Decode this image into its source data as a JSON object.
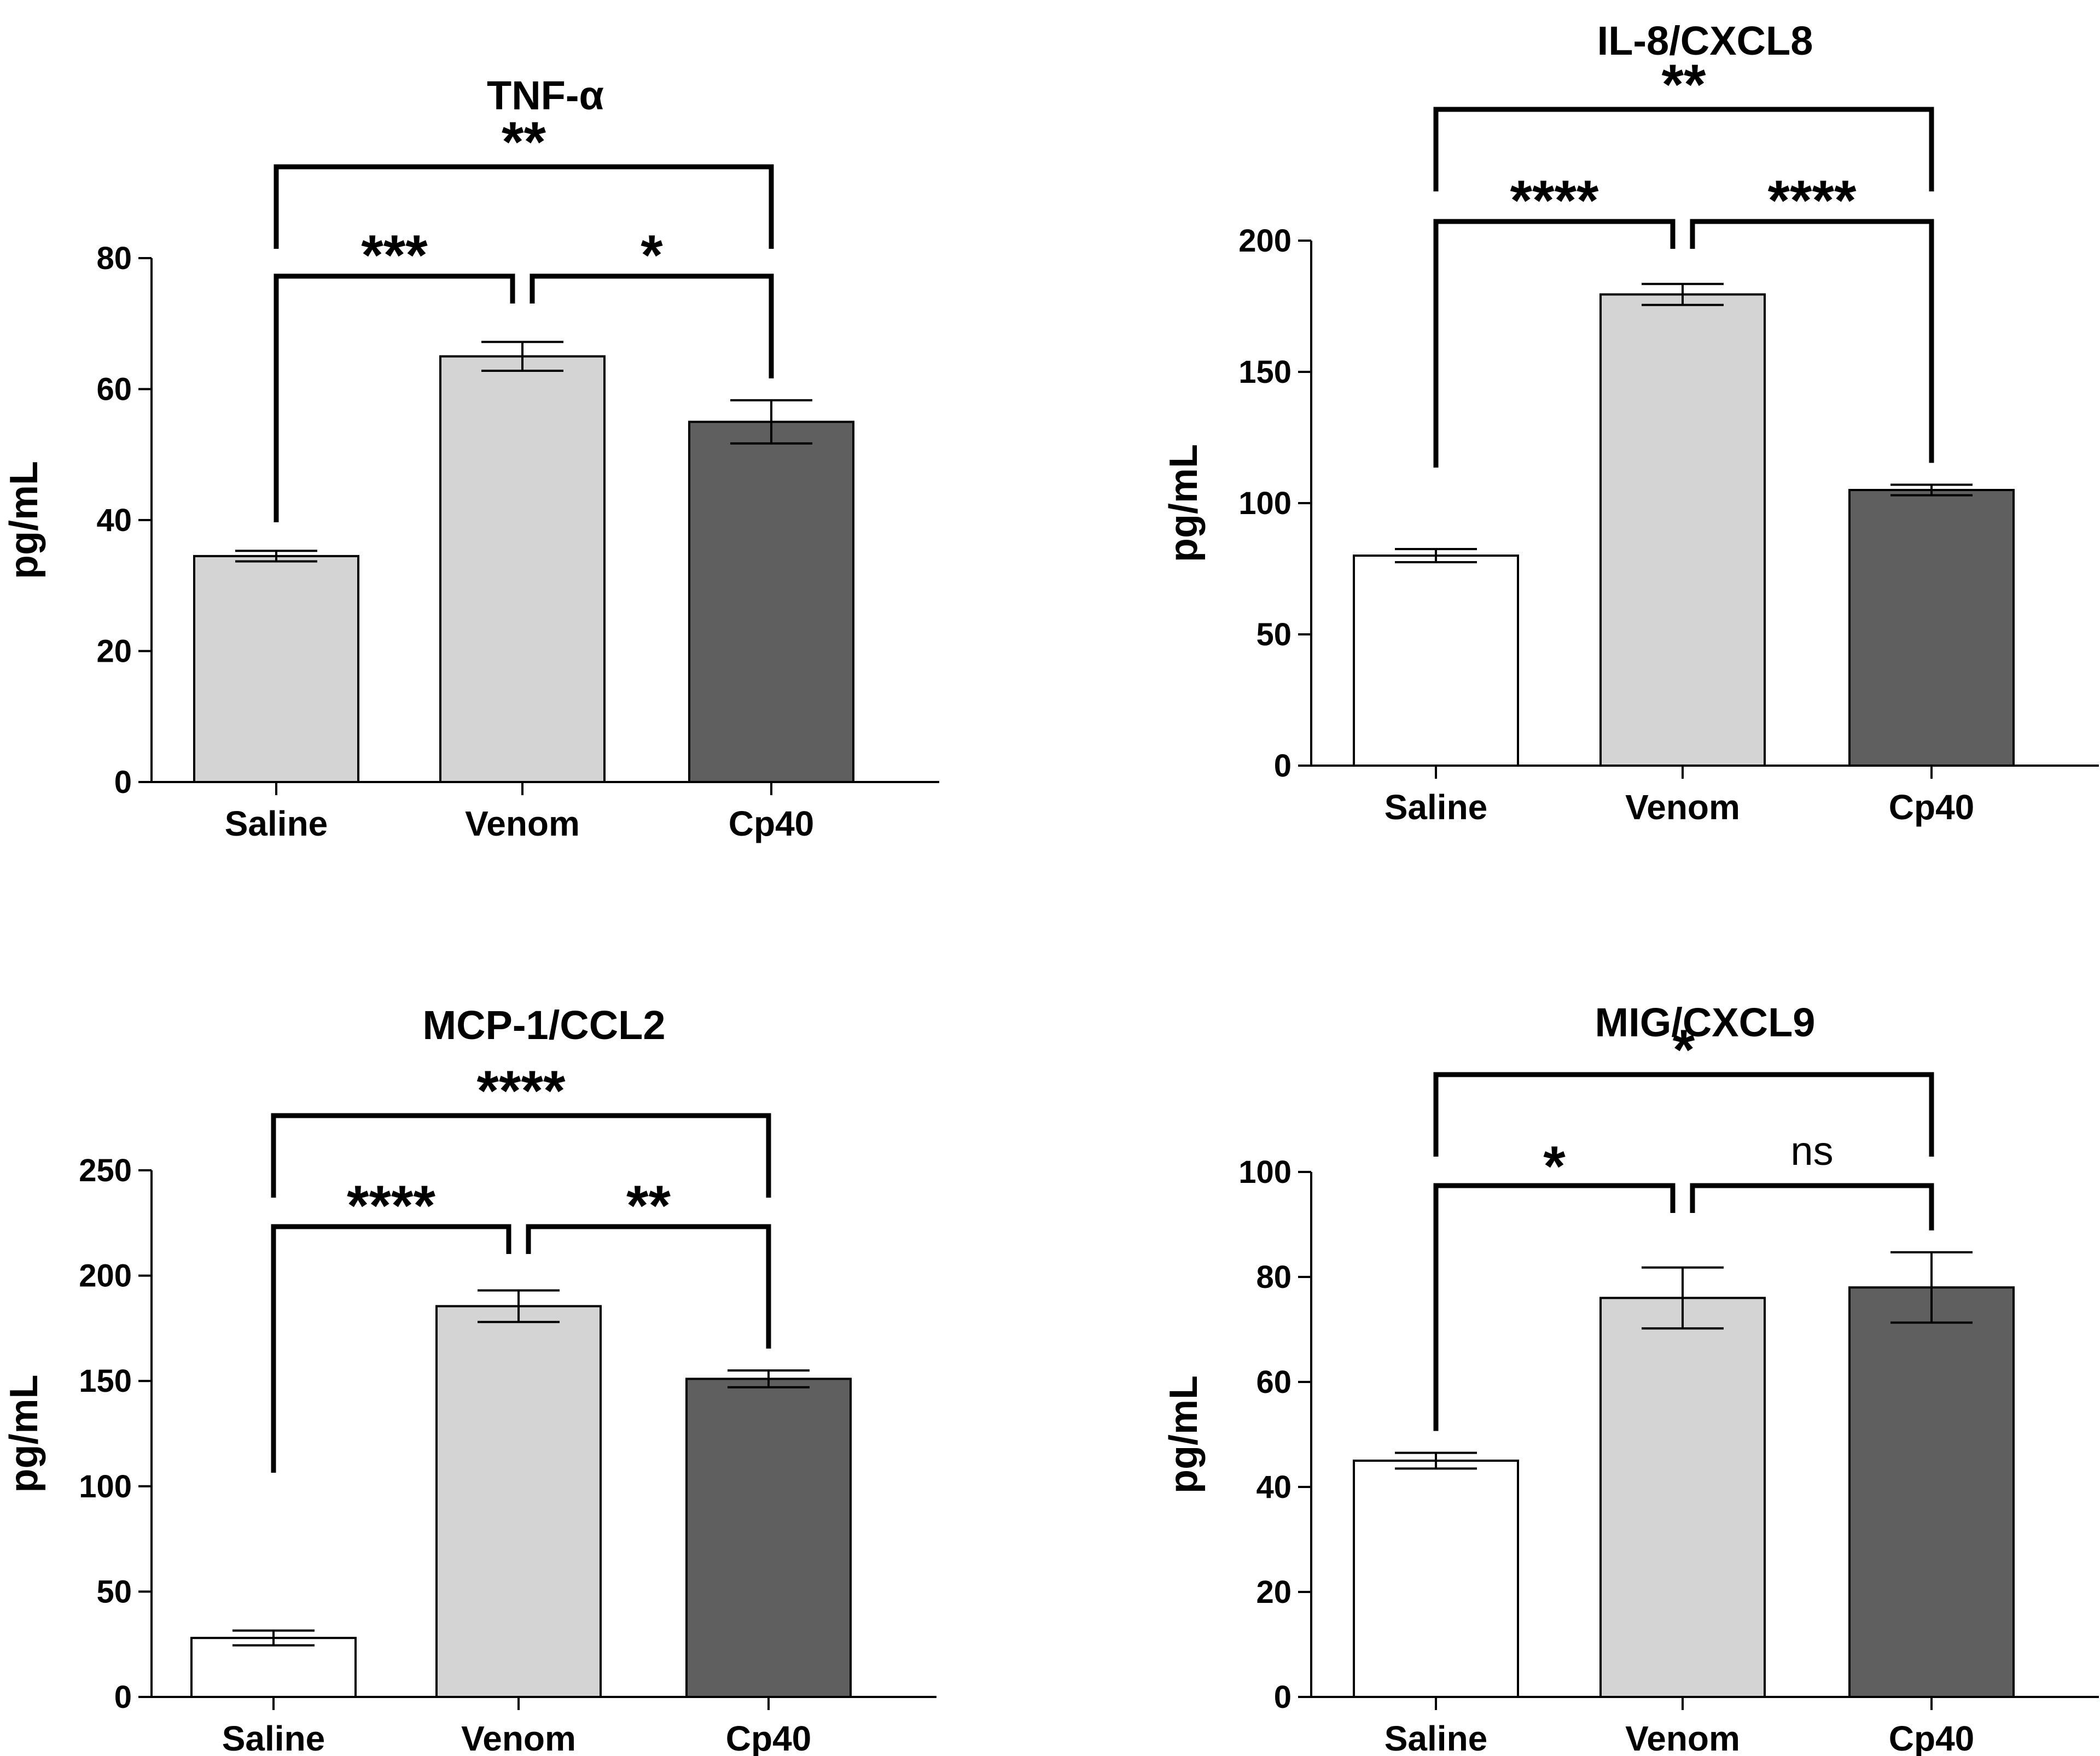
{
  "chart_data": [
    {
      "type": "bar",
      "title": "TNF-α",
      "xlabel": "",
      "ylabel": "pg/mL",
      "categories": [
        "Saline",
        "Venom",
        "Cp40"
      ],
      "values": [
        34.5,
        65,
        55
      ],
      "errors": [
        0.8,
        2.2,
        3.3
      ],
      "bar_colors": [
        "#d4d4d4",
        "#d4d4d4",
        "#5f5f5f"
      ],
      "ylim": [
        0,
        80
      ],
      "yticks": [
        0,
        20,
        40,
        60,
        80
      ],
      "comparisons": [
        {
          "from": "Saline",
          "to": "Venom",
          "label": "***"
        },
        {
          "from": "Venom",
          "to": "Cp40",
          "label": "*"
        },
        {
          "from": "Saline",
          "to": "Cp40",
          "label": "**"
        }
      ]
    },
    {
      "type": "bar",
      "title": "IL-8/CXCL8",
      "xlabel": "",
      "ylabel": "pg/mL",
      "categories": [
        "Saline",
        "Venom",
        "Cp40"
      ],
      "values": [
        80,
        179.5,
        105
      ],
      "errors": [
        2.5,
        4,
        2
      ],
      "bar_colors": [
        "#ffffff",
        "#d4d4d4",
        "#5f5f5f"
      ],
      "ylim": [
        0,
        200
      ],
      "yticks": [
        0,
        50,
        100,
        150,
        200
      ],
      "comparisons": [
        {
          "from": "Saline",
          "to": "Venom",
          "label": "****"
        },
        {
          "from": "Venom",
          "to": "Cp40",
          "label": "****"
        },
        {
          "from": "Saline",
          "to": "Cp40",
          "label": "**"
        }
      ]
    },
    {
      "type": "bar",
      "title": "MCP-1/CCL2",
      "xlabel": "",
      "ylabel": "pg/mL",
      "categories": [
        "Saline",
        "Venom",
        "Cp40"
      ],
      "values": [
        28,
        185.5,
        151
      ],
      "errors": [
        3.5,
        7.5,
        4
      ],
      "bar_colors": [
        "#ffffff",
        "#d4d4d4",
        "#5f5f5f"
      ],
      "ylim": [
        0,
        250
      ],
      "yticks": [
        0,
        50,
        100,
        150,
        200,
        250
      ],
      "comparisons": [
        {
          "from": "Saline",
          "to": "Venom",
          "label": "****"
        },
        {
          "from": "Venom",
          "to": "Cp40",
          "label": "**"
        },
        {
          "from": "Saline",
          "to": "Cp40",
          "label": "****"
        }
      ]
    },
    {
      "type": "bar",
      "title": "MIG/CXCL9",
      "xlabel": "",
      "ylabel": "pg/mL",
      "categories": [
        "Saline",
        "Venom",
        "Cp40"
      ],
      "values": [
        45,
        76,
        78
      ],
      "errors": [
        1.5,
        5.8,
        6.7
      ],
      "bar_colors": [
        "#ffffff",
        "#d4d4d4",
        "#5f5f5f"
      ],
      "ylim": [
        0,
        100
      ],
      "yticks": [
        0,
        20,
        40,
        60,
        80,
        100
      ],
      "comparisons": [
        {
          "from": "Saline",
          "to": "Venom",
          "label": "*"
        },
        {
          "from": "Venom",
          "to": "Cp40",
          "label": "ns"
        },
        {
          "from": "Saline",
          "to": "Cp40",
          "label": "*"
        }
      ]
    }
  ]
}
